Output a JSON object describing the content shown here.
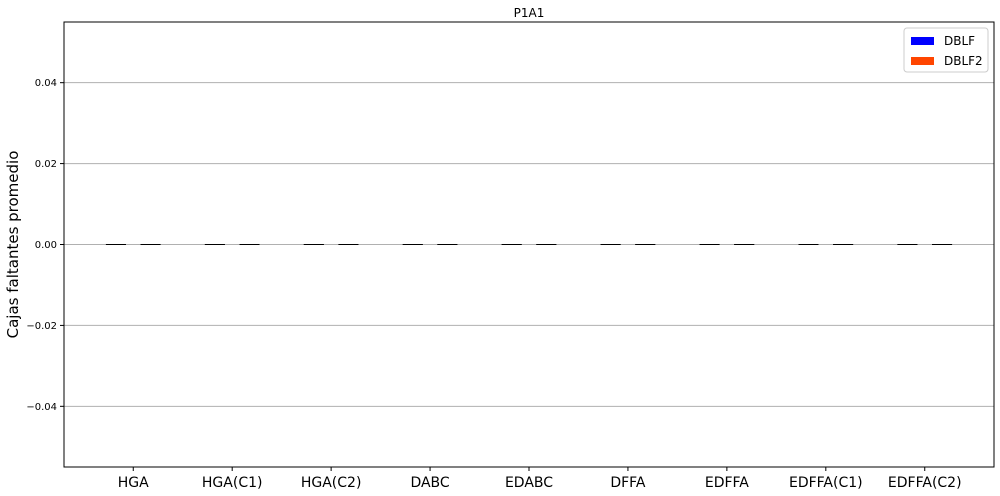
{
  "chart_data": {
    "type": "bar",
    "title": "P1A1",
    "xlabel": "",
    "ylabel": "Cajas faltantes promedio",
    "categories": [
      "HGA",
      "HGA(C1)",
      "HGA(C2)",
      "DABC",
      "EDABC",
      "DFFA",
      "EDFFA",
      "EDFFA(C1)",
      "EDFFA(C2)"
    ],
    "series": [
      {
        "name": "DBLF",
        "color": "#0000ff",
        "values": [
          0,
          0,
          0,
          0,
          0,
          0,
          0,
          0,
          0
        ],
        "error": [
          0,
          0,
          0,
          0,
          0,
          0,
          0,
          0,
          0
        ]
      },
      {
        "name": "DBLF2",
        "color": "#ff4500",
        "values": [
          0,
          0,
          0,
          0,
          0,
          0,
          0,
          0,
          0
        ],
        "error": [
          0,
          0,
          0,
          0,
          0,
          0,
          0,
          0,
          0
        ]
      }
    ],
    "ylim": [
      -0.055,
      0.055
    ],
    "yticks": [
      -0.04,
      -0.02,
      0.0,
      0.02,
      0.04
    ],
    "ytick_labels": [
      "−0.04",
      "−0.02",
      "0.00",
      "0.02",
      "0.04"
    ],
    "grid": "y",
    "legend_position": "top-right"
  }
}
